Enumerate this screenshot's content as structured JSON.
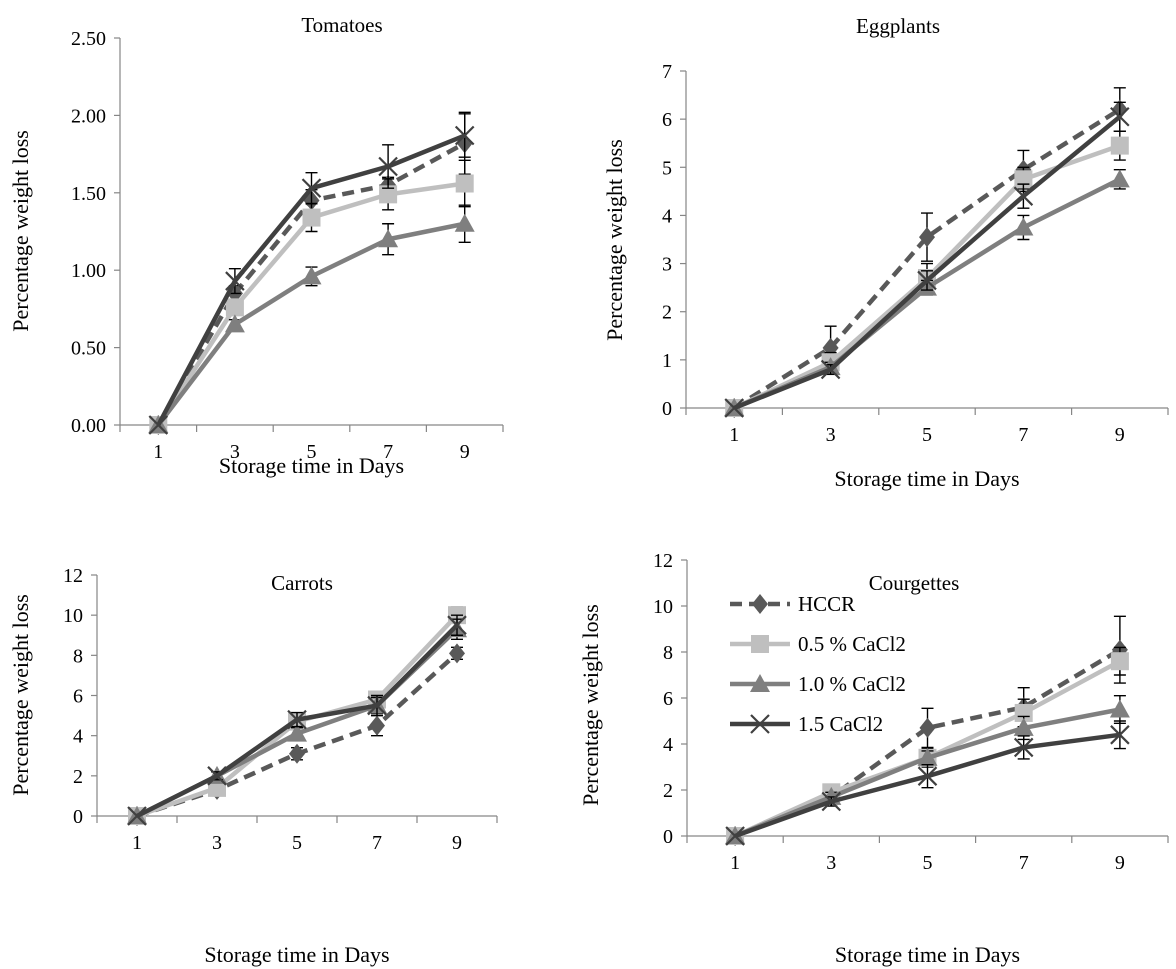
{
  "chart_data": [
    {
      "type": "line",
      "title": "Tomatoes",
      "xlabel": "Storage time in Days",
      "ylabel": "Percentage weight loss",
      "x": [
        1,
        3,
        5,
        7,
        9
      ],
      "xticks": [
        "1",
        "3",
        "5",
        "7",
        "9"
      ],
      "yticks": [
        "0.00",
        "0.50",
        "1.00",
        "1.50",
        "2.00",
        "2.50"
      ],
      "ylim": [
        0,
        2.5
      ],
      "series": [
        {
          "name": "HCCR",
          "values": [
            0,
            0.85,
            1.45,
            1.55,
            1.82
          ],
          "errors": [
            0,
            0.05,
            0.07,
            0.05,
            0.2
          ]
        },
        {
          "name": "0.5 % CaCl2",
          "values": [
            0,
            0.76,
            1.34,
            1.49,
            1.56
          ],
          "errors": [
            0,
            0.05,
            0.09,
            0.1,
            0.15
          ]
        },
        {
          "name": "1.0 % CaCl2",
          "values": [
            0,
            0.65,
            0.96,
            1.2,
            1.3
          ],
          "errors": [
            0,
            0.03,
            0.06,
            0.1,
            0.12
          ]
        },
        {
          "name": "1.5 CaCl2",
          "values": [
            0,
            0.93,
            1.53,
            1.67,
            1.87
          ],
          "errors": [
            0,
            0.08,
            0.1,
            0.14,
            0.14
          ]
        }
      ]
    },
    {
      "type": "line",
      "title": "Eggplants",
      "xlabel": "Storage time in Days",
      "ylabel": "Percentage weight loss",
      "x": [
        1,
        3,
        5,
        7,
        9
      ],
      "xticks": [
        "1",
        "3",
        "5",
        "7",
        "9"
      ],
      "yticks": [
        "0",
        "1",
        "2",
        "3",
        "4",
        "5",
        "6",
        "7"
      ],
      "ylim": [
        0,
        7
      ],
      "series": [
        {
          "name": "HCCR",
          "values": [
            0,
            1.25,
            3.55,
            4.95,
            6.2
          ],
          "errors": [
            0,
            0.45,
            0.5,
            0.4,
            0.45
          ]
        },
        {
          "name": "0.5 % CaCl2",
          "values": [
            0,
            0.95,
            2.7,
            4.75,
            5.45
          ],
          "errors": [
            0,
            0.2,
            0.3,
            0.25,
            0.3
          ]
        },
        {
          "name": "1.0 % CaCl2",
          "values": [
            0,
            0.85,
            2.5,
            3.75,
            4.75
          ],
          "errors": [
            0,
            0.1,
            0.15,
            0.25,
            0.2
          ]
        },
        {
          "name": "1.5 CaCl2",
          "values": [
            0,
            0.8,
            2.65,
            4.4,
            6.05
          ],
          "errors": [
            0,
            0.1,
            0.2,
            0.25,
            0.3
          ]
        }
      ]
    },
    {
      "type": "line",
      "title": "Carrots",
      "xlabel": "Storage time in Days",
      "ylabel": "Percentage weight loss",
      "x": [
        1,
        3,
        5,
        7,
        9
      ],
      "xticks": [
        "1",
        "3",
        "5",
        "7",
        "9"
      ],
      "yticks": [
        "0",
        "2",
        "4",
        "6",
        "8",
        "10",
        "12"
      ],
      "ylim": [
        0,
        12
      ],
      "series": [
        {
          "name": "HCCR",
          "values": [
            0,
            1.3,
            3.1,
            4.5,
            8.1
          ],
          "errors": [
            0,
            0.2,
            0.3,
            0.5,
            0.3
          ]
        },
        {
          "name": "0.5 % CaCl2",
          "values": [
            0,
            1.4,
            4.7,
            5.8,
            10.0
          ],
          "errors": [
            0,
            0.2,
            0.4,
            0.4,
            0.4
          ]
        },
        {
          "name": "1.0 % CaCl2",
          "values": [
            0,
            2.0,
            4.1,
            5.5,
            9.3
          ],
          "errors": [
            0,
            0.2,
            0.3,
            0.4,
            0.5
          ]
        },
        {
          "name": "1.5 CaCl2",
          "values": [
            0,
            2.0,
            4.8,
            5.5,
            9.5
          ],
          "errors": [
            0,
            0.2,
            0.35,
            0.5,
            0.5
          ]
        }
      ]
    },
    {
      "type": "line",
      "title": "Courgettes",
      "xlabel": "Storage time in Days",
      "ylabel": "Percentage weight loss",
      "x": [
        1,
        3,
        5,
        7,
        9
      ],
      "xticks": [
        "1",
        "3",
        "5",
        "7",
        "9"
      ],
      "yticks": [
        "0",
        "2",
        "4",
        "6",
        "8",
        "10",
        "12"
      ],
      "ylim": [
        0,
        12
      ],
      "legend": "top-left",
      "series": [
        {
          "name": "HCCR",
          "values": [
            0,
            1.7,
            4.7,
            5.6,
            8.1
          ],
          "errors": [
            0,
            0.2,
            0.85,
            0.85,
            1.45
          ]
        },
        {
          "name": "0.5 % CaCl2",
          "values": [
            0,
            1.9,
            3.4,
            5.35,
            7.6
          ],
          "errors": [
            0,
            0.2,
            0.4,
            0.6,
            0.6
          ]
        },
        {
          "name": "1.0 % CaCl2",
          "values": [
            0,
            1.7,
            3.4,
            4.7,
            5.5
          ],
          "errors": [
            0,
            0.2,
            0.3,
            0.5,
            0.6
          ]
        },
        {
          "name": "1.5 CaCl2",
          "values": [
            0,
            1.5,
            2.6,
            3.85,
            4.4
          ],
          "errors": [
            0,
            0.2,
            0.5,
            0.5,
            0.6
          ]
        }
      ]
    }
  ],
  "styles": {
    "HCCR": {
      "color": "#595959",
      "marker": "diamond",
      "dash": "12,7"
    },
    "0.5 % CaCl2": {
      "color": "#bfbfbf",
      "marker": "square",
      "dash": ""
    },
    "1.0 % CaCl2": {
      "color": "#7f7f7f",
      "marker": "triangle",
      "dash": ""
    },
    "1.5 CaCl2": {
      "color": "#404040",
      "marker": "x",
      "dash": ""
    }
  }
}
